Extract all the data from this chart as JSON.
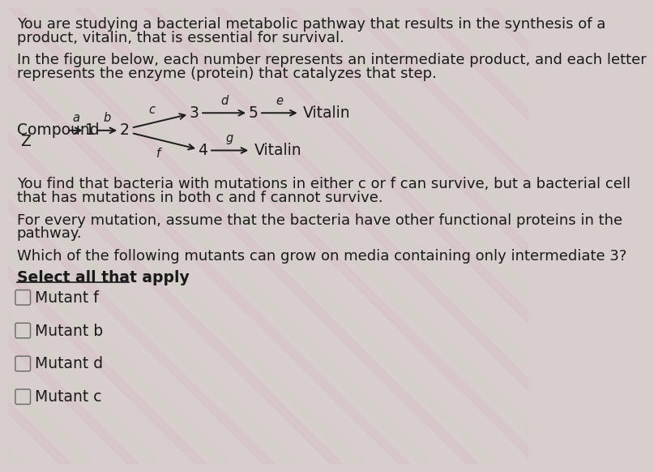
{
  "bg_color": "#cdc8c8",
  "text_color": "#1a1a1a",
  "title_text1": "You are studying a bacterial metabolic pathway that results in the synthesis of a",
  "title_text2": "product, vitalin, that is essential for survival.",
  "desc_text1": "In the figure below, each number represents an intermediate product, and each letter",
  "desc_text2": "represents the enzyme (protein) that catalyzes that step.",
  "info_text1": "You find that bacteria with mutations in either c or f can survive, but a bacterial cell",
  "info_text2": "that has mutations in both c and f cannot survive.",
  "assumption_text1": "For every mutation, assume that the bacteria have other functional proteins in the",
  "assumption_text2": "pathway.",
  "question_text": "Which of the following mutants can grow on media containing only intermediate 3?",
  "select_text": "Select all that apply",
  "choices": [
    "Mutant f",
    "Mutant b",
    "Mutant d",
    "Mutant c"
  ],
  "font_size_body": 13.0,
  "font_size_diagram": 13.5,
  "font_size_label": 10.5,
  "font_size_choices": 13.5,
  "pattern_colors": [
    "#d4b8c4",
    "#c8d4bc",
    "#e0d0d8",
    "#d0dcc8"
  ],
  "stripe_alpha": 0.35
}
